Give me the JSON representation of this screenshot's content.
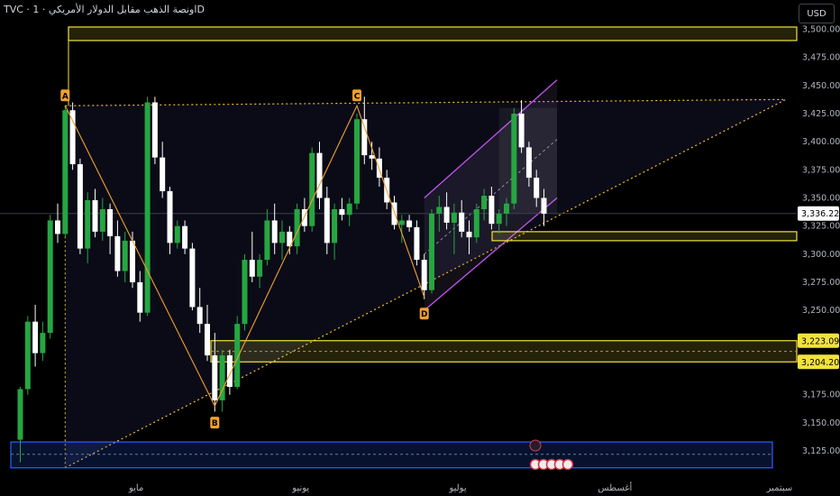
{
  "header": {
    "symbol_line": "TVC · اونصة الذهب مقابل الدولار الأمريكي · 1D",
    "currency": "USD"
  },
  "colors": {
    "up": "#26a641",
    "down": "#ffffff",
    "zone": "#f2e33b",
    "blue": "#2962ff",
    "channel": "#c054f0",
    "pattern": "#f0a030",
    "dotted": "#f0c030"
  },
  "chart_data": {
    "type": "candlestick",
    "y_ticks": [
      "3,500.000",
      "3,475.000",
      "3,450.000",
      "3,425.000",
      "3,400.000",
      "3,375.000",
      "3,350.000",
      "3,325.000",
      "3,300.000",
      "3,275.000",
      "3,250.000",
      "3,175.000",
      "3,150.000",
      "3,125.000"
    ],
    "y_tick_values": [
      3500,
      3475,
      3450,
      3425,
      3400,
      3375,
      3350,
      3325,
      3300,
      3275,
      3250,
      3175,
      3150,
      3125
    ],
    "ylim": [
      3105,
      3510
    ],
    "x_labels": [
      "مايو",
      "يونيو",
      "يوليو",
      "أغسطس",
      "سبتمبر"
    ],
    "x_label_index": [
      15.5,
      37.5,
      58.5,
      79.5,
      101.5
    ],
    "candles": [
      [
        3135,
        3182,
        3115,
        3180
      ],
      [
        3180,
        3245,
        3175,
        3240
      ],
      [
        3240,
        3255,
        3200,
        3212
      ],
      [
        3212,
        3240,
        3205,
        3230
      ],
      [
        3230,
        3335,
        3225,
        3330
      ],
      [
        3330,
        3345,
        3310,
        3318
      ],
      [
        3318,
        3432,
        3315,
        3428
      ],
      [
        3428,
        3435,
        3375,
        3380
      ],
      [
        3380,
        3385,
        3300,
        3305
      ],
      [
        3305,
        3355,
        3292,
        3348
      ],
      [
        3348,
        3358,
        3315,
        3320
      ],
      [
        3320,
        3350,
        3312,
        3340
      ],
      [
        3340,
        3345,
        3300,
        3316
      ],
      [
        3316,
        3330,
        3280,
        3285
      ],
      [
        3285,
        3320,
        3275,
        3312
      ],
      [
        3312,
        3320,
        3270,
        3275
      ],
      [
        3275,
        3285,
        3240,
        3248
      ],
      [
        3248,
        3440,
        3245,
        3435
      ],
      [
        3435,
        3440,
        3380,
        3386
      ],
      [
        3386,
        3400,
        3350,
        3356
      ],
      [
        3356,
        3360,
        3300,
        3310
      ],
      [
        3310,
        3330,
        3305,
        3325
      ],
      [
        3325,
        3330,
        3300,
        3305
      ],
      [
        3305,
        3310,
        3250,
        3253
      ],
      [
        3253,
        3270,
        3230,
        3238
      ],
      [
        3238,
        3255,
        3205,
        3210
      ],
      [
        3210,
        3230,
        3160,
        3170
      ],
      [
        3170,
        3215,
        3160,
        3210
      ],
      [
        3210,
        3215,
        3175,
        3182
      ],
      [
        3182,
        3245,
        3180,
        3238
      ],
      [
        3238,
        3300,
        3232,
        3295
      ],
      [
        3295,
        3320,
        3275,
        3280
      ],
      [
        3280,
        3300,
        3270,
        3295
      ],
      [
        3295,
        3340,
        3290,
        3330
      ],
      [
        3330,
        3345,
        3300,
        3310
      ],
      [
        3310,
        3330,
        3295,
        3320
      ],
      [
        3320,
        3325,
        3300,
        3307
      ],
      [
        3307,
        3345,
        3300,
        3340
      ],
      [
        3340,
        3350,
        3320,
        3325
      ],
      [
        3325,
        3395,
        3320,
        3390
      ],
      [
        3390,
        3400,
        3340,
        3350
      ],
      [
        3350,
        3360,
        3300,
        3310
      ],
      [
        3310,
        3345,
        3295,
        3340
      ],
      [
        3340,
        3350,
        3330,
        3335
      ],
      [
        3335,
        3350,
        3325,
        3345
      ],
      [
        3345,
        3425,
        3340,
        3420
      ],
      [
        3420,
        3440,
        3380,
        3388
      ],
      [
        3388,
        3400,
        3375,
        3385
      ],
      [
        3385,
        3395,
        3360,
        3368
      ],
      [
        3368,
        3375,
        3340,
        3346
      ],
      [
        3346,
        3352,
        3322,
        3326
      ],
      [
        3326,
        3335,
        3310,
        3330
      ],
      [
        3330,
        3335,
        3320,
        3324
      ],
      [
        3324,
        3330,
        3290,
        3295
      ],
      [
        3295,
        3300,
        3260,
        3268
      ],
      [
        3268,
        3340,
        3265,
        3336
      ],
      [
        3336,
        3352,
        3320,
        3342
      ],
      [
        3342,
        3355,
        3322,
        3328
      ],
      [
        3328,
        3345,
        3300,
        3337
      ],
      [
        3337,
        3348,
        3315,
        3320
      ],
      [
        3320,
        3330,
        3300,
        3315
      ],
      [
        3315,
        3345,
        3310,
        3340
      ],
      [
        3340,
        3358,
        3330,
        3352
      ],
      [
        3352,
        3360,
        3322,
        3327
      ],
      [
        3327,
        3340,
        3318,
        3336
      ],
      [
        3336,
        3350,
        3325,
        3345
      ],
      [
        3345,
        3430,
        3340,
        3425
      ],
      [
        3425,
        3437,
        3390,
        3395
      ],
      [
        3395,
        3400,
        3360,
        3368
      ],
      [
        3368,
        3375,
        3342,
        3350
      ],
      [
        3350,
        3358,
        3325,
        3336
      ]
    ],
    "zones": [
      {
        "label": "",
        "top": 3502,
        "bottom": 3490
      },
      {
        "label": "",
        "top": 3320,
        "bottom": 3312
      },
      {
        "label": "3,223.090",
        "top": 3223.09,
        "bottom": 3204.205
      },
      {
        "label": "3,204.205",
        "top": 3204.205,
        "bottom": 3204.205
      }
    ],
    "current_price": "3,336.220",
    "current_value": 3336.22,
    "pattern_points": [
      {
        "label": "A",
        "i": 6,
        "price": 3432
      },
      {
        "label": "B",
        "i": 26,
        "price": 3165
      },
      {
        "label": "C",
        "i": 45,
        "price": 3432
      },
      {
        "label": "D",
        "i": 54,
        "price": 3262
      }
    ]
  }
}
